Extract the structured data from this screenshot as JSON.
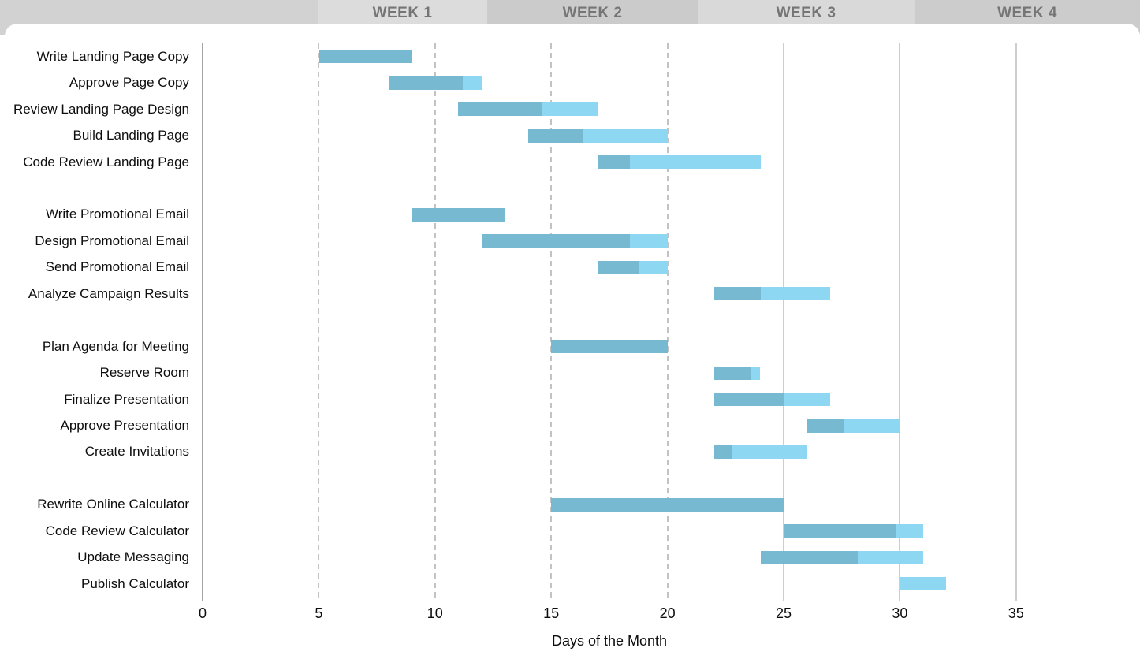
{
  "header": {
    "segments": [
      {
        "label": ""
      },
      {
        "label": "WEEK 1"
      },
      {
        "label": "WEEK 2"
      },
      {
        "label": "WEEK 3"
      },
      {
        "label": "WEEK 4"
      }
    ]
  },
  "chart_data": {
    "type": "bar",
    "subtype": "gantt",
    "title": "",
    "xlabel": "Days of the Month",
    "ylabel": "",
    "xlim": [
      0,
      40.3
    ],
    "x_ticks": [
      0,
      5,
      10,
      15,
      20,
      25,
      30,
      35
    ],
    "dashed_gridlines": [
      5,
      10,
      15,
      20
    ],
    "solid_gridlines": [
      25,
      30,
      35
    ],
    "grid": "vertical-only",
    "legend": "none",
    "colors": {
      "complete": "#76B9D1",
      "remaining": "#8ED7F3",
      "gridline_dashed": "#C3C3C3",
      "gridline_solid": "#CDCDCD",
      "axis_zero_line": "#A6A6A6",
      "header_text": "#757575"
    },
    "tasks": [
      {
        "group": 1,
        "name": "Write Landing Page Copy",
        "start": 5,
        "end": 9,
        "pct_complete": 100
      },
      {
        "group": 1,
        "name": "Approve Page Copy",
        "start": 8,
        "end": 12,
        "pct_complete": 80
      },
      {
        "group": 1,
        "name": "Review Landing Page Design",
        "start": 11,
        "end": 17,
        "pct_complete": 60
      },
      {
        "group": 1,
        "name": "Build Landing Page",
        "start": 14,
        "end": 20,
        "pct_complete": 40
      },
      {
        "group": 1,
        "name": "Code Review Landing Page",
        "start": 17,
        "end": 24,
        "pct_complete": 20
      },
      {
        "group": 2,
        "name": "Write Promotional Email",
        "start": 9,
        "end": 13,
        "pct_complete": 100
      },
      {
        "group": 2,
        "name": "Design Promotional Email",
        "start": 12,
        "end": 20,
        "pct_complete": 80
      },
      {
        "group": 2,
        "name": "Send Promotional Email",
        "start": 17,
        "end": 20,
        "pct_complete": 60
      },
      {
        "group": 2,
        "name": "Analyze Campaign Results",
        "start": 22,
        "end": 27,
        "pct_complete": 40
      },
      {
        "group": 3,
        "name": "Plan Agenda for Meeting",
        "start": 15,
        "end": 20,
        "pct_complete": 100
      },
      {
        "group": 3,
        "name": "Reserve Room",
        "start": 22,
        "end": 24,
        "pct_complete": 80
      },
      {
        "group": 3,
        "name": "Finalize Presentation",
        "start": 22,
        "end": 27,
        "pct_complete": 60
      },
      {
        "group": 3,
        "name": "Approve Presentation",
        "start": 26,
        "end": 30,
        "pct_complete": 40
      },
      {
        "group": 3,
        "name": "Create Invitations",
        "start": 22,
        "end": 26,
        "pct_complete": 20
      },
      {
        "group": 4,
        "name": "Rewrite Online Calculator",
        "start": 15,
        "end": 25,
        "pct_complete": 100
      },
      {
        "group": 4,
        "name": "Code Review Calculator",
        "start": 25,
        "end": 31,
        "pct_complete": 80
      },
      {
        "group": 4,
        "name": "Update Messaging",
        "start": 24,
        "end": 31,
        "pct_complete": 60
      },
      {
        "group": 4,
        "name": "Publish Calculator",
        "start": 30,
        "end": 32,
        "pct_complete": 0
      }
    ]
  }
}
